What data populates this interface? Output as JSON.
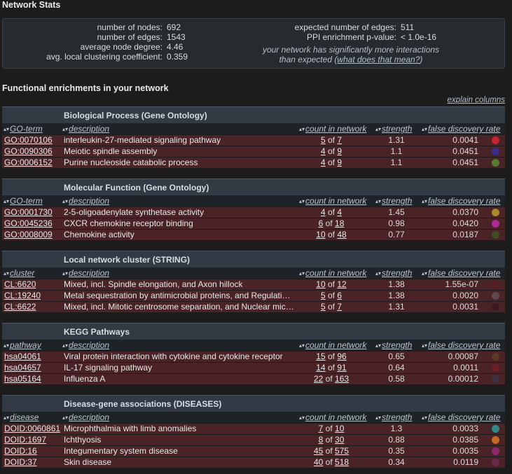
{
  "network_stats": {
    "title": "Network Stats",
    "left": [
      {
        "label": "number of nodes:",
        "value": "692"
      },
      {
        "label": "number of edges:",
        "value": "1543"
      },
      {
        "label": "average node degree:",
        "value": "4.46"
      },
      {
        "label": "avg. local clustering coefficient:",
        "value": "0.359"
      }
    ],
    "right": [
      {
        "label": "expected number of edges:",
        "value": "511"
      },
      {
        "label": "PPI enrichment p-value:",
        "value": "< 1.0e-16"
      }
    ],
    "note_line1": "your network has significantly more interactions",
    "note_line2": "than expected (",
    "note_link": "what does that mean?",
    "note_close": ")"
  },
  "enrichments": {
    "title": "Functional enrichments in your network",
    "explain_link": "explain columns",
    "sections": [
      {
        "name": "Biological Process (Gene Ontology)",
        "id_col": "GO-term",
        "rows": [
          {
            "id": "GO:0070106",
            "desc": "interleukin-27-mediated signaling pathway",
            "count": "5",
            "total": "7",
            "strength": "1.31",
            "fdr": "0.0041",
            "color": "#c8242f"
          },
          {
            "id": "GO:0090306",
            "desc": "Meiotic spindle assembly",
            "count": "4",
            "total": "9",
            "strength": "1.1",
            "fdr": "0.0451",
            "color": "#3a2d8a"
          },
          {
            "id": "GO:0006152",
            "desc": "Purine nucleoside catabolic process",
            "count": "4",
            "total": "9",
            "strength": "1.1",
            "fdr": "0.0451",
            "color": "#5b7a2c"
          }
        ]
      },
      {
        "name": "Molecular Function (Gene Ontology)",
        "id_col": "GO-term",
        "rows": [
          {
            "id": "GO:0001730",
            "desc": "2-5-oligoadenylate synthetase activity",
            "count": "4",
            "total": "4",
            "strength": "1.45",
            "fdr": "0.0370",
            "color": "#a88a2a"
          },
          {
            "id": "GO:0045236",
            "desc": "CXCR chemokine receptor binding",
            "count": "6",
            "total": "18",
            "strength": "0.98",
            "fdr": "0.0420",
            "color": "#b0289a"
          },
          {
            "id": "GO:0008009",
            "desc": "Chemokine activity",
            "count": "10",
            "total": "48",
            "strength": "0.77",
            "fdr": "0.0187",
            "color": "#3e4d22"
          }
        ]
      },
      {
        "name": "Local network cluster (STRING)",
        "id_col": "cluster",
        "rows": [
          {
            "id": "CL:6620",
            "desc": "Mixed, incl. Spindle elongation, and Axon hillock",
            "count": "10",
            "total": "12",
            "strength": "1.38",
            "fdr": "1.55e-07",
            "color": "#5a1d22"
          },
          {
            "id": "CL:19240",
            "desc": "Metal sequestration by antimicrobial proteins, and Regulation...",
            "count": "5",
            "total": "6",
            "strength": "1.38",
            "fdr": "0.0020",
            "color": "#5e4a4e"
          },
          {
            "id": "CL:6622",
            "desc": "Mixed, incl. Mitotic centrosome separation, and Nuclear micr...",
            "count": "5",
            "total": "7",
            "strength": "1.31",
            "fdr": "0.0031",
            "color": "#3a1a1e"
          }
        ]
      },
      {
        "name": "KEGG Pathways",
        "id_col": "pathway",
        "rows": [
          {
            "id": "hsa04061",
            "desc": "Viral protein interaction with cytokine and cytokine receptor",
            "count": "15",
            "total": "96",
            "strength": "0.65",
            "fdr": "0.00087",
            "color": "#5c3a20"
          },
          {
            "id": "hsa04657",
            "desc": "IL-17 signaling pathway",
            "count": "14",
            "total": "91",
            "strength": "0.64",
            "fdr": "0.0011",
            "color": "#6b1f2a"
          },
          {
            "id": "hsa05164",
            "desc": "Influenza A",
            "count": "22",
            "total": "163",
            "strength": "0.58",
            "fdr": "0.00012",
            "color": "#3c3140"
          }
        ]
      },
      {
        "name": "Disease-gene associations (DISEASES)",
        "id_col": "disease",
        "rows": [
          {
            "id": "DOID:0060861",
            "desc": "Microphthalmia with limb anomalies",
            "count": "7",
            "total": "10",
            "strength": "1.3",
            "fdr": "0.0033",
            "color": "#2e8a86"
          },
          {
            "id": "DOID:1697",
            "desc": "Ichthyosis",
            "count": "8",
            "total": "30",
            "strength": "0.88",
            "fdr": "0.0385",
            "color": "#c46a22"
          },
          {
            "id": "DOID:16",
            "desc": "Integumentary system disease",
            "count": "45",
            "total": "575",
            "strength": "0.35",
            "fdr": "0.0035",
            "color": "#8a2a6a"
          },
          {
            "id": "DOID:37",
            "desc": "Skin disease",
            "count": "40",
            "total": "518",
            "strength": "0.34",
            "fdr": "0.0119",
            "color": "#6a2a4a"
          }
        ]
      }
    ],
    "columns": {
      "description": "description",
      "count": "count in network",
      "strength": "strength",
      "fdr": "false discovery rate",
      "of_word": "of"
    }
  }
}
